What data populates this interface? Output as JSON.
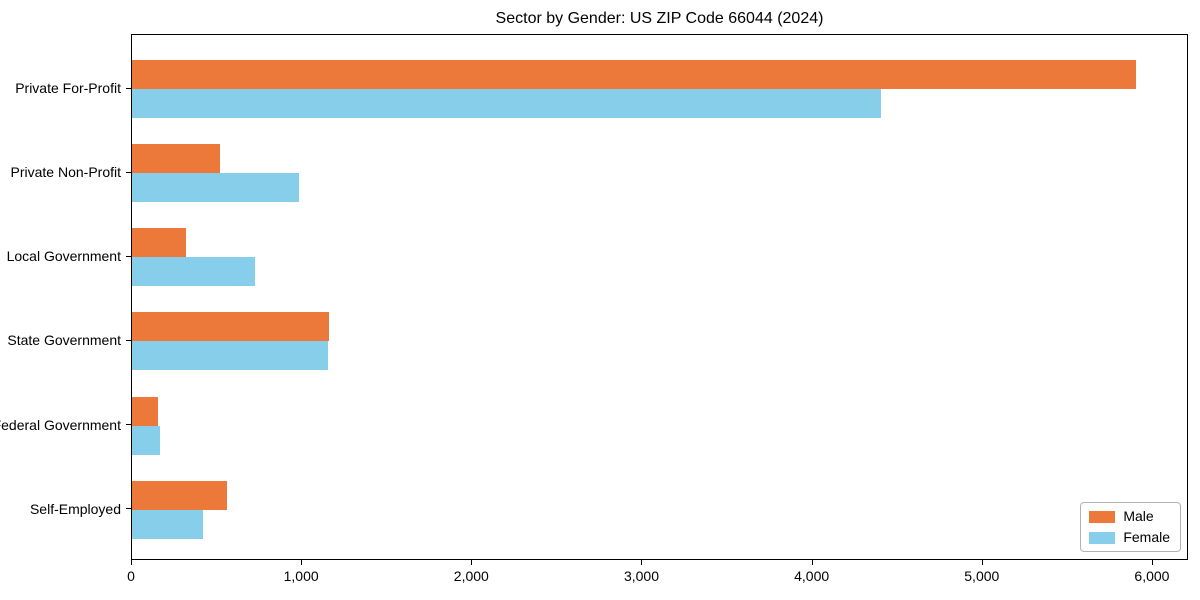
{
  "title": "Sector by Gender: US ZIP Code 66044 (2024)",
  "chart_data": {
    "type": "bar",
    "orientation": "horizontal",
    "title": "Sector by Gender: US ZIP Code 66044 (2024)",
    "categories": [
      "Private For-Profit",
      "Private Non-Profit",
      "Local Government",
      "State Government",
      "Federal Government",
      "Self-Employed"
    ],
    "series": [
      {
        "name": "Male",
        "color": "#ec7839",
        "values": [
          5900,
          520,
          320,
          1160,
          150,
          560
        ]
      },
      {
        "name": "Female",
        "color": "#87ceeb",
        "values": [
          4400,
          980,
          720,
          1150,
          165,
          415
        ]
      }
    ],
    "xlabel": "",
    "ylabel": "",
    "xlim": [
      0,
      6200
    ],
    "xticks": [
      0,
      1000,
      2000,
      3000,
      4000,
      5000,
      6000
    ],
    "xtick_labels": [
      "0",
      "1,000",
      "2,000",
      "3,000",
      "4,000",
      "5,000",
      "6,000"
    ],
    "grid": false,
    "legend_position": "lower right"
  },
  "legend": {
    "male_label": "Male",
    "female_label": "Female"
  }
}
